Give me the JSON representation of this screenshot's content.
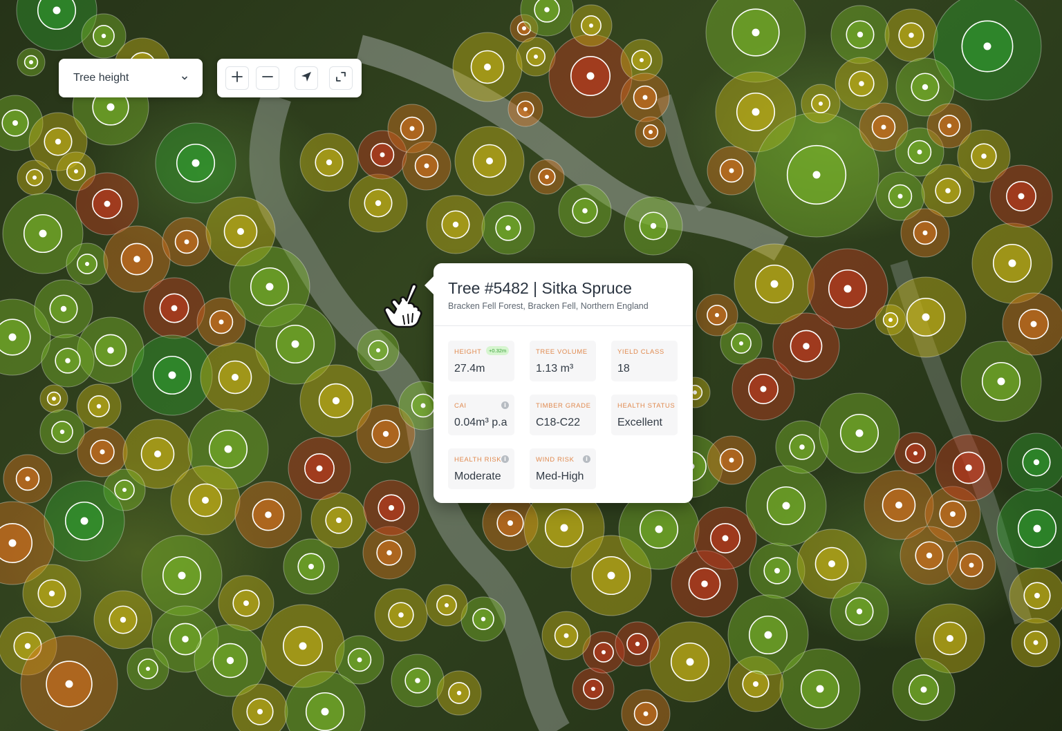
{
  "layer_select": {
    "label": "Tree height",
    "icon": "chevron-down-icon"
  },
  "controls": {
    "icons": [
      "plus-icon",
      "minus-icon",
      "locate-arrow-icon",
      "fullscreen-icon"
    ]
  },
  "popup": {
    "title": "Tree #5482 | Sitka Spruce",
    "subtitle": "Bracken Fell Forest, Bracken Fell, Northern England",
    "metrics": {
      "height": {
        "label": "HEIGHT",
        "value": "27.4m",
        "badge": "+0.32m"
      },
      "tree_volume": {
        "label": "TREE VOLUME",
        "value": "1.13 m³"
      },
      "yield_class": {
        "label": "YIELD CLASS",
        "value": "18"
      },
      "cai": {
        "label": "CAI",
        "value": "0.04m³ p.a"
      },
      "timber_grade": {
        "label": "TIMBER GRADE",
        "value": "C18-C22"
      },
      "health_status": {
        "label": "HEALTH STATUS",
        "value": "Excellent"
      },
      "health_risk": {
        "label": "HEALTH RISK",
        "value": "Moderate"
      },
      "wind_risk": {
        "label": "WIND RISK",
        "value": "Med-High"
      }
    }
  },
  "colors": {
    "high": "#2f9e2f",
    "mid_high": "#7cb82a",
    "mid": "#c9b418",
    "low": "#d9731f",
    "very_low": "#c93a1f",
    "label_accent": "#e08a4f"
  }
}
